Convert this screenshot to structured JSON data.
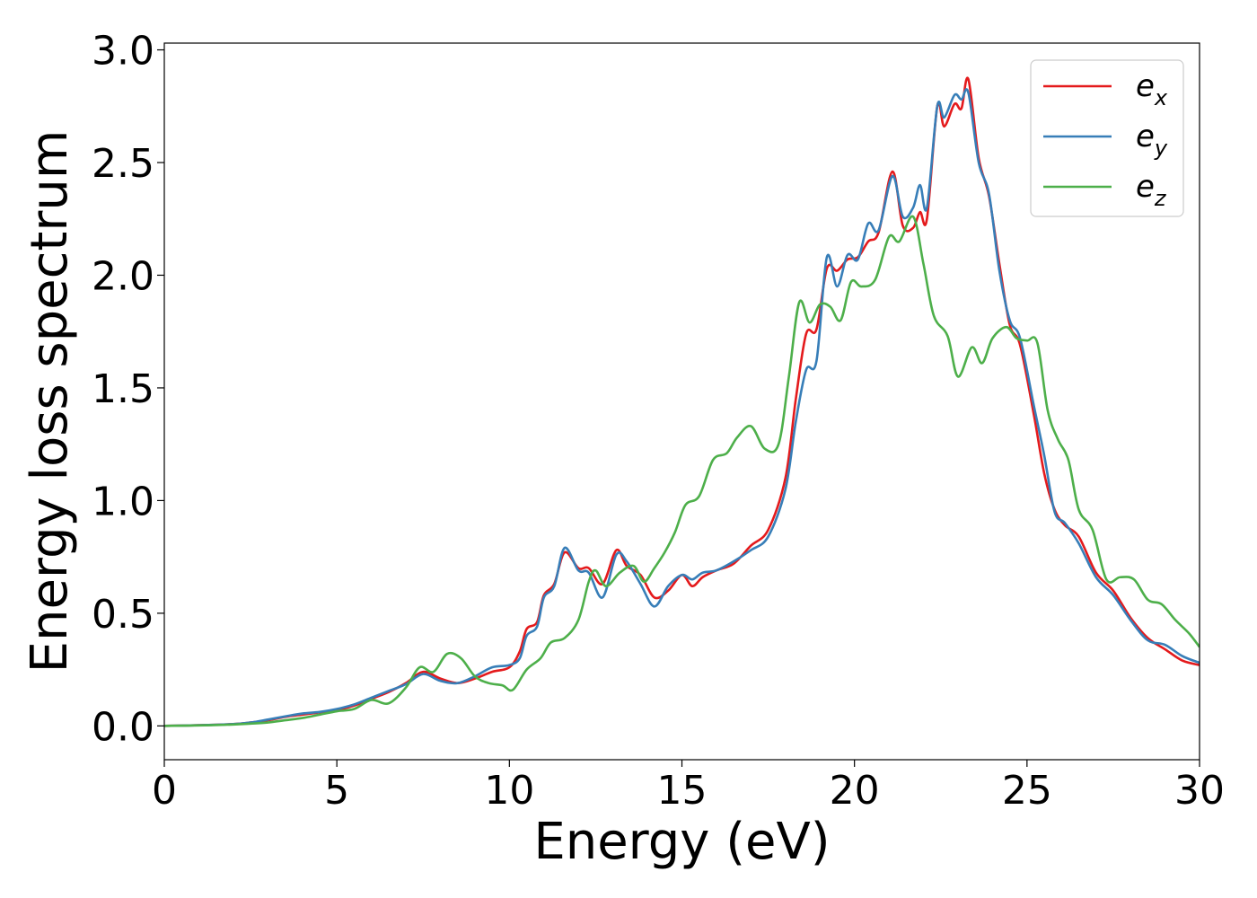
{
  "chart_data": {
    "type": "line",
    "title": "",
    "xlabel": "Energy (eV)",
    "ylabel": "Energy loss spectrum",
    "xlim": [
      0,
      30
    ],
    "ylim": [
      -0.15,
      3.03
    ],
    "xticks": [
      0,
      5,
      10,
      15,
      20,
      25,
      30
    ],
    "yticks": [
      0.0,
      0.5,
      1.0,
      1.5,
      2.0,
      2.5,
      3.0
    ],
    "xtick_labels": [
      "0",
      "5",
      "10",
      "15",
      "20",
      "25",
      "30"
    ],
    "ytick_labels": [
      "0.0",
      "0.5",
      "1.0",
      "1.5",
      "2.0",
      "2.5",
      "3.0"
    ],
    "grid": false,
    "legend_position": "top-right",
    "series": [
      {
        "name": "e_x",
        "label_main": "e",
        "label_sub": "x",
        "color": "#e41a1c",
        "points": [
          [
            0,
            0
          ],
          [
            1,
            0.003
          ],
          [
            2,
            0.008
          ],
          [
            2.5,
            0.015
          ],
          [
            3,
            0.025
          ],
          [
            3.5,
            0.04
          ],
          [
            4,
            0.05
          ],
          [
            4.5,
            0.06
          ],
          [
            5,
            0.07
          ],
          [
            5.5,
            0.09
          ],
          [
            6,
            0.12
          ],
          [
            6.5,
            0.15
          ],
          [
            7,
            0.19
          ],
          [
            7.5,
            0.24
          ],
          [
            8,
            0.21
          ],
          [
            8.5,
            0.19
          ],
          [
            9,
            0.21
          ],
          [
            9.5,
            0.24
          ],
          [
            10,
            0.26
          ],
          [
            10.3,
            0.33
          ],
          [
            10.5,
            0.43
          ],
          [
            10.8,
            0.46
          ],
          [
            11,
            0.58
          ],
          [
            11.3,
            0.63
          ],
          [
            11.6,
            0.77
          ],
          [
            12,
            0.7
          ],
          [
            12.3,
            0.7
          ],
          [
            12.7,
            0.63
          ],
          [
            13.1,
            0.78
          ],
          [
            13.4,
            0.71
          ],
          [
            13.8,
            0.67
          ],
          [
            14.2,
            0.57
          ],
          [
            14.6,
            0.6
          ],
          [
            15,
            0.67
          ],
          [
            15.3,
            0.62
          ],
          [
            15.6,
            0.66
          ],
          [
            16,
            0.69
          ],
          [
            16.5,
            0.72
          ],
          [
            17,
            0.8
          ],
          [
            17.5,
            0.87
          ],
          [
            18,
            1.1
          ],
          [
            18.3,
            1.45
          ],
          [
            18.6,
            1.74
          ],
          [
            18.9,
            1.76
          ],
          [
            19.2,
            2.03
          ],
          [
            19.5,
            2.02
          ],
          [
            19.8,
            2.07
          ],
          [
            20.1,
            2.08
          ],
          [
            20.4,
            2.15
          ],
          [
            20.7,
            2.19
          ],
          [
            21.1,
            2.46
          ],
          [
            21.4,
            2.22
          ],
          [
            21.7,
            2.21
          ],
          [
            21.9,
            2.28
          ],
          [
            22.1,
            2.25
          ],
          [
            22.4,
            2.75
          ],
          [
            22.6,
            2.66
          ],
          [
            22.9,
            2.76
          ],
          [
            23.1,
            2.74
          ],
          [
            23.3,
            2.87
          ],
          [
            23.6,
            2.52
          ],
          [
            23.9,
            2.35
          ],
          [
            24.2,
            2.05
          ],
          [
            24.5,
            1.78
          ],
          [
            24.8,
            1.69
          ],
          [
            25.2,
            1.38
          ],
          [
            25.5,
            1.12
          ],
          [
            25.8,
            0.96
          ],
          [
            26.1,
            0.89
          ],
          [
            26.5,
            0.84
          ],
          [
            27,
            0.68
          ],
          [
            27.5,
            0.6
          ],
          [
            28,
            0.48
          ],
          [
            28.5,
            0.39
          ],
          [
            29,
            0.34
          ],
          [
            29.5,
            0.29
          ],
          [
            30,
            0.27
          ]
        ]
      },
      {
        "name": "e_y",
        "label_main": "e",
        "label_sub": "y",
        "color": "#377eb8",
        "points": [
          [
            0,
            0
          ],
          [
            1,
            0.003
          ],
          [
            2,
            0.008
          ],
          [
            2.5,
            0.015
          ],
          [
            3,
            0.028
          ],
          [
            3.5,
            0.042
          ],
          [
            4,
            0.055
          ],
          [
            4.5,
            0.062
          ],
          [
            5,
            0.075
          ],
          [
            5.5,
            0.095
          ],
          [
            6,
            0.125
          ],
          [
            6.5,
            0.155
          ],
          [
            7,
            0.185
          ],
          [
            7.5,
            0.23
          ],
          [
            8,
            0.2
          ],
          [
            8.5,
            0.19
          ],
          [
            9,
            0.22
          ],
          [
            9.5,
            0.26
          ],
          [
            10,
            0.27
          ],
          [
            10.3,
            0.3
          ],
          [
            10.5,
            0.4
          ],
          [
            10.8,
            0.44
          ],
          [
            11,
            0.57
          ],
          [
            11.3,
            0.62
          ],
          [
            11.6,
            0.79
          ],
          [
            12,
            0.69
          ],
          [
            12.3,
            0.68
          ],
          [
            12.7,
            0.57
          ],
          [
            13.1,
            0.76
          ],
          [
            13.4,
            0.73
          ],
          [
            13.8,
            0.63
          ],
          [
            14.2,
            0.53
          ],
          [
            14.6,
            0.62
          ],
          [
            15,
            0.67
          ],
          [
            15.3,
            0.65
          ],
          [
            15.6,
            0.68
          ],
          [
            16,
            0.69
          ],
          [
            16.5,
            0.73
          ],
          [
            17,
            0.78
          ],
          [
            17.5,
            0.84
          ],
          [
            18,
            1.05
          ],
          [
            18.3,
            1.35
          ],
          [
            18.6,
            1.58
          ],
          [
            18.9,
            1.62
          ],
          [
            19.2,
            2.08
          ],
          [
            19.5,
            1.95
          ],
          [
            19.8,
            2.09
          ],
          [
            20.1,
            2.07
          ],
          [
            20.4,
            2.23
          ],
          [
            20.7,
            2.2
          ],
          [
            21.1,
            2.44
          ],
          [
            21.4,
            2.26
          ],
          [
            21.7,
            2.3
          ],
          [
            21.9,
            2.4
          ],
          [
            22.1,
            2.3
          ],
          [
            22.4,
            2.75
          ],
          [
            22.6,
            2.7
          ],
          [
            22.9,
            2.8
          ],
          [
            23.1,
            2.78
          ],
          [
            23.3,
            2.81
          ],
          [
            23.6,
            2.5
          ],
          [
            23.9,
            2.36
          ],
          [
            24.2,
            2.02
          ],
          [
            24.5,
            1.8
          ],
          [
            24.8,
            1.72
          ],
          [
            25.2,
            1.42
          ],
          [
            25.5,
            1.2
          ],
          [
            25.8,
            0.95
          ],
          [
            26.1,
            0.9
          ],
          [
            26.5,
            0.81
          ],
          [
            27,
            0.66
          ],
          [
            27.5,
            0.58
          ],
          [
            28,
            0.47
          ],
          [
            28.5,
            0.38
          ],
          [
            29,
            0.36
          ],
          [
            29.5,
            0.31
          ],
          [
            30,
            0.28
          ]
        ]
      },
      {
        "name": "e_z",
        "label_main": "e",
        "label_sub": "z",
        "color": "#4daf4a",
        "points": [
          [
            0,
            0
          ],
          [
            1,
            0.002
          ],
          [
            2,
            0.006
          ],
          [
            2.5,
            0.01
          ],
          [
            3,
            0.015
          ],
          [
            3.5,
            0.025
          ],
          [
            4,
            0.035
          ],
          [
            4.5,
            0.05
          ],
          [
            5,
            0.065
          ],
          [
            5.5,
            0.075
          ],
          [
            6,
            0.115
          ],
          [
            6.5,
            0.1
          ],
          [
            7,
            0.17
          ],
          [
            7.4,
            0.26
          ],
          [
            7.8,
            0.24
          ],
          [
            8.2,
            0.32
          ],
          [
            8.6,
            0.3
          ],
          [
            9,
            0.22
          ],
          [
            9.4,
            0.19
          ],
          [
            9.8,
            0.18
          ],
          [
            10.1,
            0.16
          ],
          [
            10.5,
            0.25
          ],
          [
            10.9,
            0.3
          ],
          [
            11.2,
            0.37
          ],
          [
            11.6,
            0.39
          ],
          [
            12,
            0.47
          ],
          [
            12.3,
            0.64
          ],
          [
            12.5,
            0.69
          ],
          [
            12.8,
            0.62
          ],
          [
            13.2,
            0.68
          ],
          [
            13.6,
            0.71
          ],
          [
            13.9,
            0.64
          ],
          [
            14.2,
            0.7
          ],
          [
            14.5,
            0.77
          ],
          [
            14.8,
            0.86
          ],
          [
            15.1,
            0.98
          ],
          [
            15.5,
            1.02
          ],
          [
            15.9,
            1.18
          ],
          [
            16.3,
            1.21
          ],
          [
            16.6,
            1.28
          ],
          [
            17,
            1.33
          ],
          [
            17.4,
            1.23
          ],
          [
            17.8,
            1.25
          ],
          [
            18.1,
            1.55
          ],
          [
            18.4,
            1.88
          ],
          [
            18.7,
            1.79
          ],
          [
            19,
            1.87
          ],
          [
            19.3,
            1.86
          ],
          [
            19.6,
            1.8
          ],
          [
            19.9,
            1.97
          ],
          [
            20.2,
            1.95
          ],
          [
            20.6,
            1.98
          ],
          [
            21,
            2.17
          ],
          [
            21.3,
            2.15
          ],
          [
            21.7,
            2.26
          ],
          [
            22,
            2.05
          ],
          [
            22.3,
            1.82
          ],
          [
            22.7,
            1.73
          ],
          [
            23,
            1.55
          ],
          [
            23.4,
            1.68
          ],
          [
            23.7,
            1.61
          ],
          [
            24,
            1.72
          ],
          [
            24.4,
            1.77
          ],
          [
            24.7,
            1.72
          ],
          [
            25,
            1.71
          ],
          [
            25.3,
            1.7
          ],
          [
            25.6,
            1.4
          ],
          [
            25.9,
            1.27
          ],
          [
            26.2,
            1.18
          ],
          [
            26.5,
            0.96
          ],
          [
            26.9,
            0.87
          ],
          [
            27.3,
            0.65
          ],
          [
            27.7,
            0.66
          ],
          [
            28.1,
            0.65
          ],
          [
            28.5,
            0.56
          ],
          [
            28.9,
            0.54
          ],
          [
            29.3,
            0.47
          ],
          [
            29.7,
            0.41
          ],
          [
            30,
            0.35
          ]
        ]
      }
    ]
  }
}
